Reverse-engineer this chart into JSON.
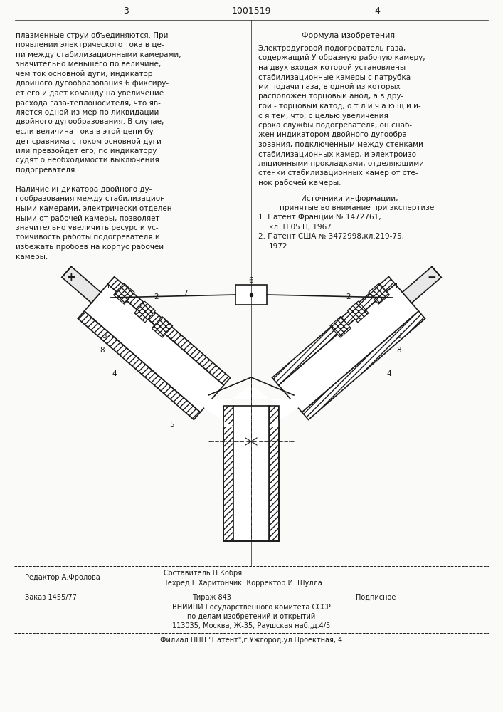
{
  "title_number": "1001519",
  "page_left": "3",
  "page_right": "4",
  "formula_title": "Формула изобретения",
  "left_text": [
    "плазменные струи объединяются. При",
    "появлении электрического тока в це-",
    "пи между стабилизационными камерами,",
    "значительно меньшего по величине,",
    "чем ток основной дуги, индикатор",
    "двойного дугообразования 6 фиксиру-",
    "ет его и дает команду на увеличение",
    "расхода газа-теплоносителя, что яв-",
    "ляется одной из мер по ликвидации",
    "двойного дугообразования. В случае,",
    "если величина тока в этой цепи бу-",
    "дет сравнима с током основной дуги",
    "или превзойдет его, по индикатору",
    "судят о необходимости выключения",
    "подогревателя.",
    "",
    "Наличие индикатора двойного ду-",
    "гообразования между стабилизацион-",
    "ными камерами, электрически отделен-",
    "ными от рабочей камеры, позволяет",
    "значительно увеличить ресурс и ус-",
    "тойчивость работы подогревателя и",
    "избежать пробоев на корпус рабочей",
    "камеры."
  ],
  "right_text": [
    "Электродуговой подогреватель газа,",
    "содержащий У-образную рабочую камеру,",
    "на двух входах которой установлены",
    "стабилизационные камеры с патрубка-",
    "ми подачи газа, в одной из которых",
    "расположен торцовый анод, а в дру-",
    "гой - торцовый катод, о т л и ч а ю щ и й-",
    "с я тем, что, с целью увеличения",
    "срока службы подогревателя, он снаб-",
    "жен индикатором двойного дугообра-",
    "зования, подключенным между стенками",
    "стабилизационных камер, и электроизо-",
    "ляционными прокладками, отделяющими",
    "стенки стабилизационных камер от сте-",
    "нок рабочей камеры."
  ],
  "sources_title": "Источники информации,",
  "sources_sub": "принятые во внимание при экспертизе",
  "source1": "1. Патент Франции № 1472761,",
  "source1b": "кл. Н 05 Н, 1967.",
  "source2": "2. Патент США № 3472998,кл.219-75,",
  "source2b": "1972.",
  "bottom_editor": "Редактор А.Фролова",
  "bottom_sostavitel": "Составитель Н.Кобря",
  "bottom_tehred": "Техред Е.Харитончик  Корректор И. Шулла",
  "bottom_zakaz": "Заказ 1455/77",
  "bottom_tirazh": "Тираж 843",
  "bottom_podpisnoe": "Подписное",
  "bottom_vniishi": "ВНИИПИ Государственного комитета СССР",
  "bottom_po": "по делам изобретений и открытий",
  "bottom_address": "113035, Москва, Ж-35, Раушская наб.,д.4/5",
  "bottom_filial": "Филиал ППП \"Патент\",г.Ужгород,ул.Проектная, 4",
  "bg_color": "#f5f5f0",
  "paper_color": "#fafaf8",
  "drawing_color": "#1a1a1a"
}
